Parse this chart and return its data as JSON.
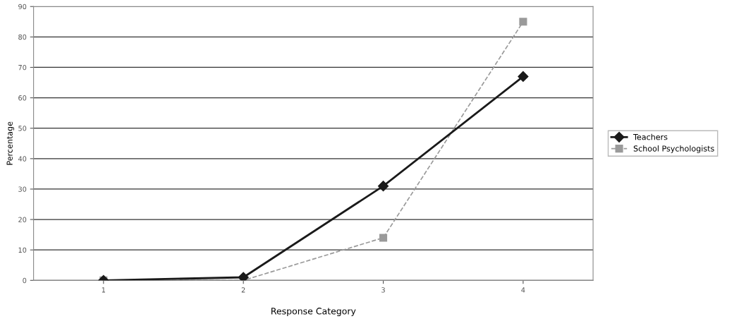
{
  "chart_data": {
    "type": "line",
    "xlabel": "Response Category",
    "ylabel": "Percentage",
    "categories": [
      "1",
      "2",
      "3",
      "4"
    ],
    "series": [
      {
        "name": "Teachers",
        "color": "#1a1a1a",
        "values": [
          0,
          1,
          31,
          67
        ],
        "marker": "diamond",
        "line_style": "solid"
      },
      {
        "name": "School Psychologists",
        "color": "#9a9a9a",
        "values": [
          0,
          0,
          14,
          85
        ],
        "marker": "square",
        "line_style": "dashed"
      }
    ],
    "ylim": [
      0,
      90
    ],
    "yticks": [
      0,
      10,
      20,
      30,
      40,
      50,
      60,
      70,
      80,
      90
    ],
    "grid": "y",
    "legend": "right"
  }
}
